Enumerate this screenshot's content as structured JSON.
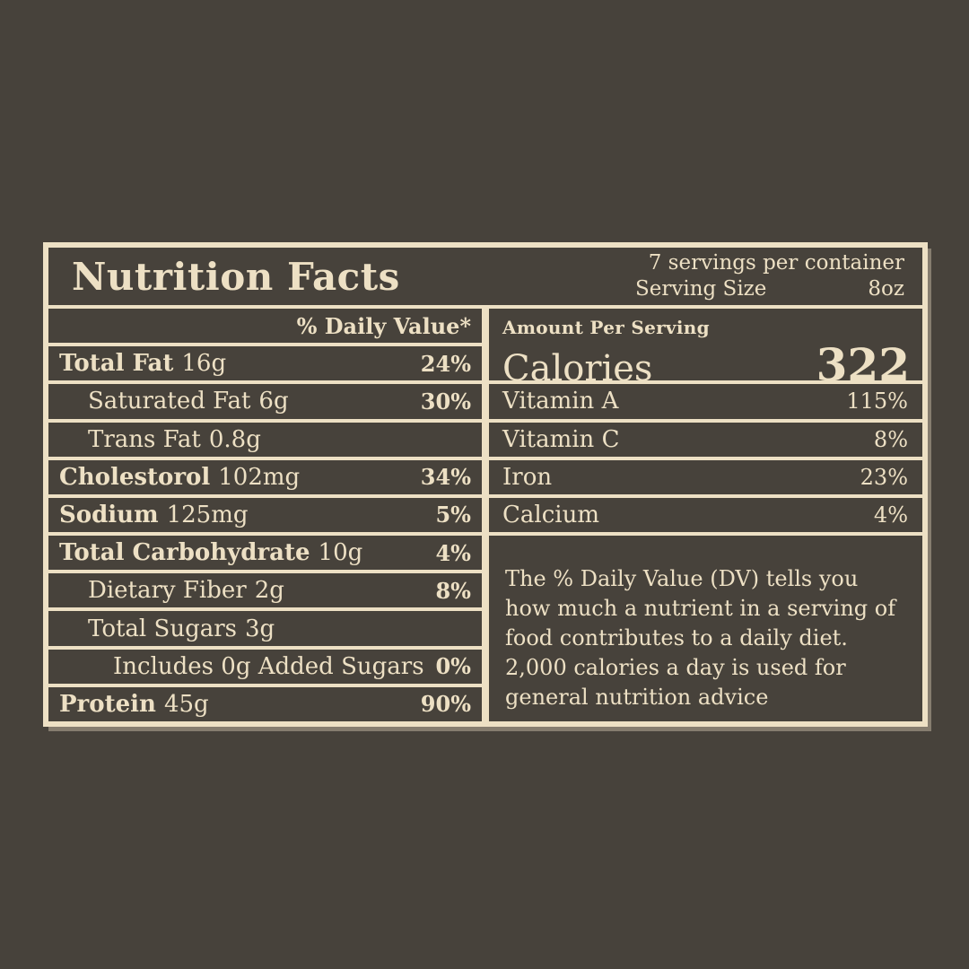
{
  "colors": {
    "bg": "#47423b",
    "cream": "#EDE0C4"
  },
  "label": {
    "title": "Nutrition Facts",
    "servings_per_container": "7 servings per container",
    "serving_size_label": "Serving Size",
    "serving_size_value": "8oz",
    "daily_value_header": "% Daily Value*",
    "nutrients": [
      {
        "name": "Total Fat",
        "amount": "16g",
        "dv": "24%"
      },
      {
        "name": "Saturated Fat",
        "amount": "6g",
        "dv": "30%"
      },
      {
        "name": "Trans Fat",
        "amount": "0.8g",
        "dv": ""
      },
      {
        "name": "Cholestorol",
        "amount": "102mg",
        "dv": "34%"
      },
      {
        "name": "Sodium",
        "amount": "125mg",
        "dv": "5%"
      },
      {
        "name": "Total Carbohydrate",
        "amount": "10g",
        "dv": "4%"
      },
      {
        "name": "Dietary Fiber",
        "amount": "2g",
        "dv": "8%"
      },
      {
        "name": "Total Sugars",
        "amount": "3g",
        "dv": ""
      },
      {
        "name": "Includes 0g Added Sugars",
        "amount": "",
        "dv": "0%"
      },
      {
        "name": "Protein",
        "amount": "45g",
        "dv": "90%"
      }
    ],
    "amount_per_serving": "Amount Per Serving",
    "calories_label": "Calories",
    "calories_value": "322",
    "vitamins": [
      {
        "name": "Vitamin A",
        "dv": "115%"
      },
      {
        "name": "Vitamin C",
        "dv": "8%"
      },
      {
        "name": "Iron",
        "dv": "23%"
      },
      {
        "name": "Calcium",
        "dv": "4%"
      }
    ],
    "footnote": "The % Daily Value (DV) tells you how much a nutrient in a serving of food contributes to a daily diet. 2,000 calories a day is used for general nutrition advice"
  }
}
